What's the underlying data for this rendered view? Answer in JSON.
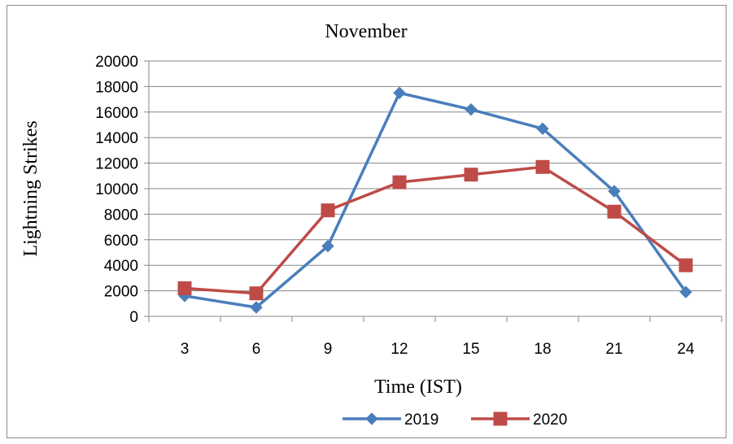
{
  "chart_data": {
    "type": "line",
    "title": "November",
    "xlabel": "Time (IST)",
    "ylabel": "Lightning Strikes",
    "categories": [
      "3",
      "6",
      "9",
      "12",
      "15",
      "18",
      "21",
      "24"
    ],
    "ylim": [
      0,
      20000
    ],
    "yticks": [
      "0",
      "2000",
      "4000",
      "6000",
      "8000",
      "10000",
      "12000",
      "14000",
      "16000",
      "18000",
      "20000"
    ],
    "grid": true,
    "legend_position": "bottom",
    "series": [
      {
        "name": "2019",
        "color": "#4a7ebb",
        "marker": "diamond",
        "values": [
          1600,
          700,
          5500,
          17500,
          16200,
          14700,
          9800,
          1900
        ]
      },
      {
        "name": "2020",
        "color": "#be4b48",
        "marker": "square",
        "values": [
          2200,
          1800,
          8300,
          10500,
          11100,
          11700,
          8200,
          4000
        ]
      }
    ]
  }
}
